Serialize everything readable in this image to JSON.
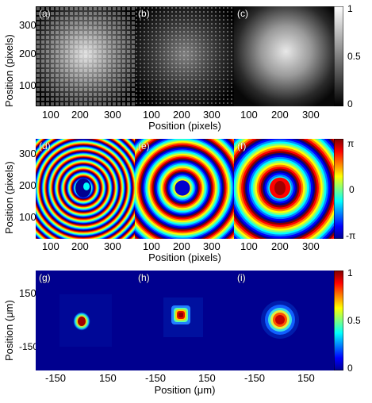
{
  "figure": {
    "row1": {
      "panels": [
        {
          "id": "a",
          "label": "(a)"
        },
        {
          "id": "b",
          "label": "(b)"
        },
        {
          "id": "c",
          "label": "(c)"
        }
      ],
      "x_ticks": [
        "100",
        "200",
        "300"
      ],
      "y_ticks": [
        "300",
        "200",
        "100"
      ],
      "xlabel": "Position (pixels)",
      "ylabel": "Position (pixels)",
      "colorbar": {
        "ticks": [
          "1",
          "0.5",
          "0"
        ],
        "colormap": "gray"
      }
    },
    "row2": {
      "panels": [
        {
          "id": "d",
          "label": "(d)"
        },
        {
          "id": "e",
          "label": "(e)"
        },
        {
          "id": "f",
          "label": "(f)"
        }
      ],
      "x_ticks": [
        "100",
        "200",
        "300"
      ],
      "y_ticks": [
        "300",
        "200",
        "100"
      ],
      "xlabel": "Position (pixels)",
      "ylabel": "Position (pixels)",
      "colorbar": {
        "ticks": [
          "π",
          "0",
          "-π"
        ],
        "colormap": "jet"
      }
    },
    "row3": {
      "panels": [
        {
          "id": "g",
          "label": "(g)"
        },
        {
          "id": "h",
          "label": "(h)"
        },
        {
          "id": "i",
          "label": "(i)"
        }
      ],
      "x_ticks": [
        "-150",
        "150"
      ],
      "y_ticks": [
        "150",
        "-150"
      ],
      "xlabel": "Position (μm)",
      "ylabel": "Position (μm)",
      "colorbar": {
        "ticks": [
          "1",
          "0.5",
          "0"
        ],
        "colormap": "jet"
      }
    }
  },
  "colors": {
    "jet_background": "#00008f",
    "gray_background": "#000000"
  }
}
